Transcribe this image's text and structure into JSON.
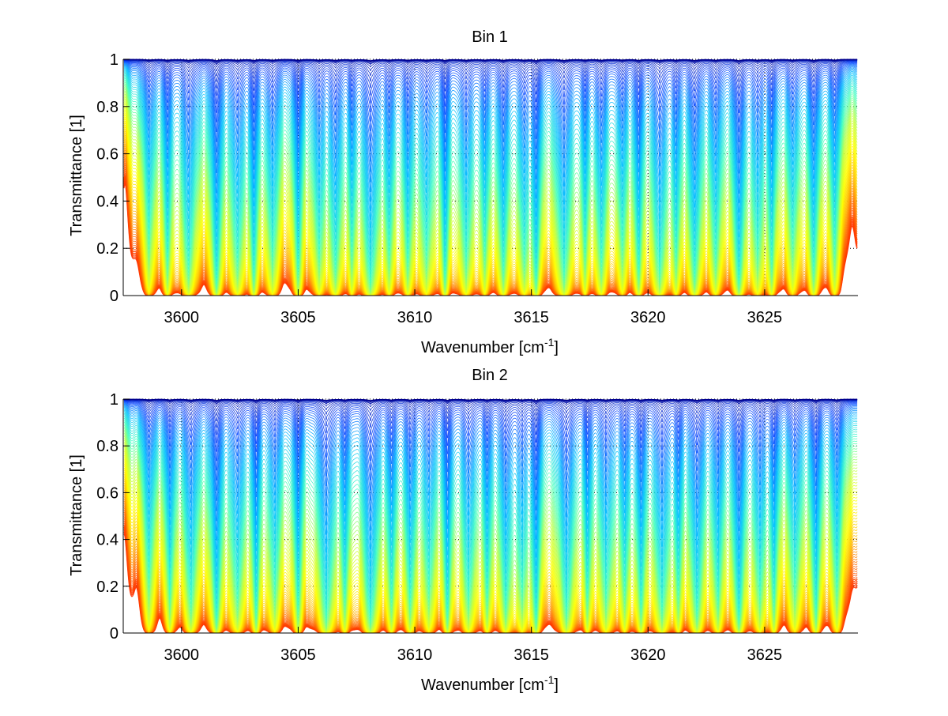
{
  "chart_data": [
    {
      "type": "line",
      "title": "Bin 1",
      "xlabel": "Wavenumber [cm",
      "xlabel_sup": "-1",
      "xlabel_end": "]",
      "ylabel": "Transmittance [1]",
      "xlim": [
        3597.5,
        3629
      ],
      "ylim": [
        0,
        1
      ],
      "xticks": [
        3600,
        3605,
        3610,
        3615,
        3620,
        3625
      ],
      "xtick_labels": [
        "3600",
        "3605",
        "3610",
        "3615",
        "3620",
        "3625"
      ],
      "yticks": [
        0,
        0.2,
        0.4,
        0.6,
        0.8,
        1
      ],
      "ytick_labels": [
        "0",
        "0.2",
        "0.4",
        "0.6",
        "0.8",
        "1"
      ],
      "grid": true,
      "series_count": 90,
      "colormap": [
        "#00008f",
        "#0040ff",
        "#00c0ff",
        "#40ffc0",
        "#c0ff40",
        "#ffff00",
        "#ffc000",
        "#ff6a00",
        "#ff3000"
      ],
      "absorption_lines": [
        {
          "x": 3598.6,
          "depth": 0.45
        },
        {
          "x": 3599.4,
          "depth": 0.6
        },
        {
          "x": 3600.3,
          "depth": 0.7
        },
        {
          "x": 3601.5,
          "depth": 0.95
        },
        {
          "x": 3602.4,
          "depth": 0.6
        },
        {
          "x": 3603.1,
          "depth": 0.75
        },
        {
          "x": 3603.9,
          "depth": 0.55
        },
        {
          "x": 3605.0,
          "depth": 0.7
        },
        {
          "x": 3605.9,
          "depth": 0.5
        },
        {
          "x": 3606.6,
          "depth": 0.65
        },
        {
          "x": 3607.3,
          "depth": 0.45
        },
        {
          "x": 3608.1,
          "depth": 0.95
        },
        {
          "x": 3608.9,
          "depth": 0.5
        },
        {
          "x": 3609.7,
          "depth": 0.6
        },
        {
          "x": 3610.5,
          "depth": 0.55
        },
        {
          "x": 3611.3,
          "depth": 0.8
        },
        {
          "x": 3612.2,
          "depth": 0.6
        },
        {
          "x": 3613.0,
          "depth": 0.5
        },
        {
          "x": 3613.8,
          "depth": 0.7
        },
        {
          "x": 3614.7,
          "depth": 0.55
        },
        {
          "x": 3615.2,
          "depth": 0.85
        },
        {
          "x": 3616.4,
          "depth": 0.8
        },
        {
          "x": 3617.3,
          "depth": 0.5
        },
        {
          "x": 3618.0,
          "depth": 0.6
        },
        {
          "x": 3618.9,
          "depth": 0.45
        },
        {
          "x": 3619.6,
          "depth": 0.7
        },
        {
          "x": 3620.5,
          "depth": 0.75
        },
        {
          "x": 3621.2,
          "depth": 0.5
        },
        {
          "x": 3622.0,
          "depth": 0.8
        },
        {
          "x": 3622.9,
          "depth": 0.55
        },
        {
          "x": 3623.9,
          "depth": 0.95
        },
        {
          "x": 3624.7,
          "depth": 0.5
        },
        {
          "x": 3625.3,
          "depth": 0.6
        },
        {
          "x": 3626.2,
          "depth": 0.45
        },
        {
          "x": 3627.1,
          "depth": 0.7
        },
        {
          "x": 3628.0,
          "depth": 0.5
        }
      ]
    },
    {
      "type": "line",
      "title": "Bin 2",
      "xlabel": "Wavenumber [cm",
      "xlabel_sup": "-1",
      "xlabel_end": "]",
      "ylabel": "Transmittance [1]",
      "xlim": [
        3597.5,
        3629
      ],
      "ylim": [
        0,
        1
      ],
      "xticks": [
        3600,
        3605,
        3610,
        3615,
        3620,
        3625
      ],
      "xtick_labels": [
        "3600",
        "3605",
        "3610",
        "3615",
        "3620",
        "3625"
      ],
      "yticks": [
        0,
        0.2,
        0.4,
        0.6,
        0.8,
        1
      ],
      "ytick_labels": [
        "0",
        "0.2",
        "0.4",
        "0.6",
        "0.8",
        "1"
      ],
      "grid": true,
      "series_count": 90,
      "colormap": [
        "#00008f",
        "#0040ff",
        "#00c0ff",
        "#40ffc0",
        "#c0ff40",
        "#ffff00",
        "#ffc000",
        "#ff6a00",
        "#ff3000"
      ],
      "absorption_lines": [
        {
          "x": 3598.6,
          "depth": 0.45
        },
        {
          "x": 3599.5,
          "depth": 0.55
        },
        {
          "x": 3600.4,
          "depth": 0.65
        },
        {
          "x": 3601.5,
          "depth": 0.95
        },
        {
          "x": 3602.4,
          "depth": 0.6
        },
        {
          "x": 3603.2,
          "depth": 0.75
        },
        {
          "x": 3604.0,
          "depth": 0.5
        },
        {
          "x": 3605.0,
          "depth": 0.7
        },
        {
          "x": 3606.2,
          "depth": 0.9
        },
        {
          "x": 3607.0,
          "depth": 0.55
        },
        {
          "x": 3608.1,
          "depth": 0.95
        },
        {
          "x": 3609.0,
          "depth": 0.55
        },
        {
          "x": 3609.8,
          "depth": 0.6
        },
        {
          "x": 3610.6,
          "depth": 0.5
        },
        {
          "x": 3611.4,
          "depth": 0.8
        },
        {
          "x": 3612.3,
          "depth": 0.6
        },
        {
          "x": 3613.1,
          "depth": 0.55
        },
        {
          "x": 3613.9,
          "depth": 0.7
        },
        {
          "x": 3614.6,
          "depth": 0.5
        },
        {
          "x": 3615.2,
          "depth": 0.9
        },
        {
          "x": 3616.5,
          "depth": 0.8
        },
        {
          "x": 3617.4,
          "depth": 0.55
        },
        {
          "x": 3618.2,
          "depth": 0.6
        },
        {
          "x": 3619.0,
          "depth": 0.5
        },
        {
          "x": 3619.7,
          "depth": 0.7
        },
        {
          "x": 3620.6,
          "depth": 0.75
        },
        {
          "x": 3621.3,
          "depth": 0.5
        },
        {
          "x": 3622.1,
          "depth": 0.8
        },
        {
          "x": 3623.0,
          "depth": 0.6
        },
        {
          "x": 3623.9,
          "depth": 0.95
        },
        {
          "x": 3624.8,
          "depth": 0.55
        },
        {
          "x": 3625.4,
          "depth": 0.6
        },
        {
          "x": 3626.3,
          "depth": 0.5
        },
        {
          "x": 3627.2,
          "depth": 0.75
        },
        {
          "x": 3628.1,
          "depth": 0.5
        }
      ]
    }
  ]
}
